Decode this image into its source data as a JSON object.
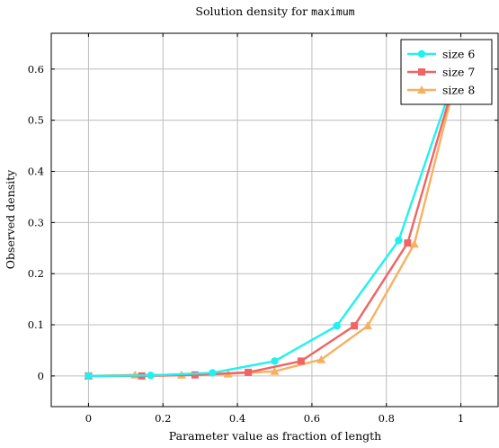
{
  "chart_data": {
    "type": "line",
    "title": "Solution density for",
    "title_code": "maximum",
    "xlabel": "Parameter value as fraction of length",
    "ylabel": "Observed density",
    "xlim": [
      -0.1,
      1.1
    ],
    "ylim": [
      -0.06,
      0.67
    ],
    "x_ticks": [
      0,
      0.2,
      0.4,
      0.6,
      0.8,
      1
    ],
    "x_tick_labels": [
      "0",
      "0.2",
      "0.4",
      "0.6",
      "0.8",
      "1"
    ],
    "y_ticks": [
      0,
      0.1,
      0.2,
      0.3,
      0.4,
      0.5,
      0.6
    ],
    "y_tick_labels": [
      "0",
      "0.1",
      "0.2",
      "0.3",
      "0.4",
      "0.5",
      "0.6"
    ],
    "grid": true,
    "legend_position": "top-right",
    "series": [
      {
        "name": "size 6",
        "color": "#22f0f0",
        "marker": "circle",
        "x": [
          0,
          0.167,
          0.333,
          0.5,
          0.667,
          0.833,
          1.0
        ],
        "y": [
          0,
          0.001,
          0.006,
          0.029,
          0.098,
          0.265,
          0.62
        ]
      },
      {
        "name": "size 7",
        "color": "#f06464",
        "marker": "square",
        "x": [
          0,
          0.143,
          0.286,
          0.429,
          0.571,
          0.714,
          0.857,
          1.0
        ],
        "y": [
          0,
          0.0,
          0.002,
          0.007,
          0.029,
          0.098,
          0.26,
          0.62
        ]
      },
      {
        "name": "size 8",
        "color": "#f8b060",
        "marker": "triangle",
        "x": [
          0,
          0.125,
          0.25,
          0.375,
          0.5,
          0.625,
          0.75,
          0.875,
          1.0
        ],
        "y": [
          0,
          0.002,
          0.002,
          0.004,
          0.009,
          0.032,
          0.098,
          0.258,
          0.62
        ]
      }
    ]
  }
}
